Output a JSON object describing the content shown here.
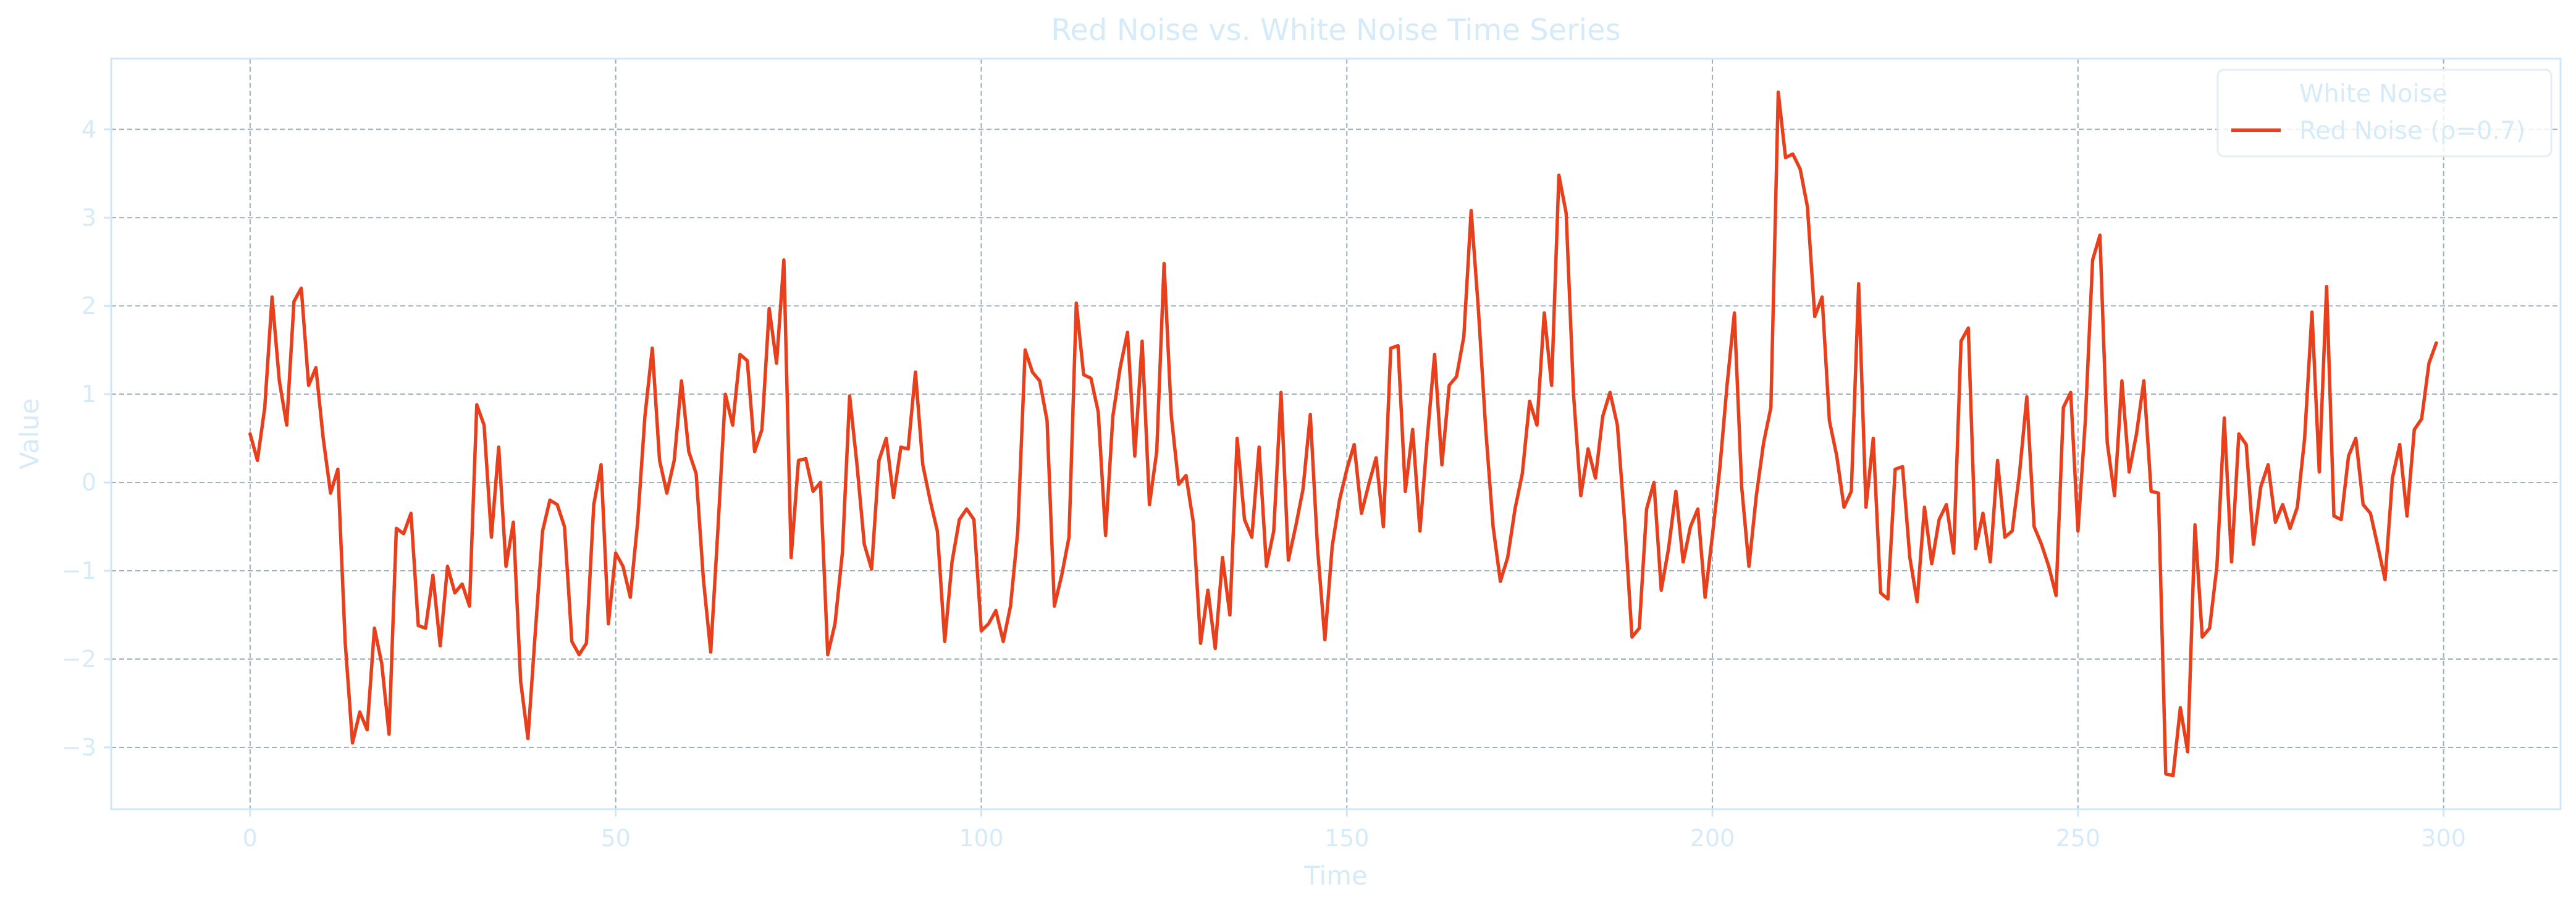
{
  "colors": {
    "text": "#d6ebfa",
    "spine": "#cfe7f8",
    "grid": "#9fb0bd",
    "red_noise": "#e8401c",
    "legend_border": "#e3eef7"
  },
  "chart_data": {
    "type": "line",
    "title": "Red Noise vs. White Noise Time Series",
    "xlabel": "Time",
    "ylabel": "Value",
    "xlim": [
      -19,
      316
    ],
    "ylim": [
      -3.7,
      4.8
    ],
    "xticks": [
      0,
      50,
      100,
      150,
      200,
      250,
      300
    ],
    "yticks": [
      -3,
      -2,
      -1,
      0,
      1,
      2,
      3,
      4
    ],
    "xtick_labels": [
      "0",
      "50",
      "100",
      "150",
      "200",
      "250",
      "300"
    ],
    "ytick_labels": [
      "−3",
      "−2",
      "−1",
      "0",
      "1",
      "2",
      "3",
      "4"
    ],
    "grid": true,
    "legend": {
      "placement": "top-right",
      "entries": [
        {
          "label": "White Noise",
          "marker": false
        },
        {
          "label": "Red Noise (ρ=0.7)",
          "marker": true
        }
      ]
    },
    "series": [
      {
        "name": "Red Noise (ρ=0.7)",
        "color": "#e8401c",
        "x_start": 0,
        "x_step": 1,
        "values": [
          0.55,
          0.25,
          0.85,
          2.1,
          1.15,
          0.65,
          2.05,
          2.2,
          1.1,
          1.3,
          0.5,
          -0.12,
          0.15,
          -1.8,
          -2.95,
          -2.6,
          -2.8,
          -1.65,
          -2.05,
          -2.85,
          -0.52,
          -0.58,
          -0.35,
          -1.62,
          -1.65,
          -1.05,
          -1.85,
          -0.95,
          -1.25,
          -1.15,
          -1.4,
          0.88,
          0.65,
          -0.62,
          0.4,
          -0.95,
          -0.45,
          -2.25,
          -2.9,
          -1.7,
          -0.55,
          -0.2,
          -0.25,
          -0.5,
          -1.8,
          -1.95,
          -1.82,
          -0.25,
          0.2,
          -1.6,
          -0.8,
          -0.95,
          -1.3,
          -0.45,
          0.75,
          1.52,
          0.25,
          -0.12,
          0.25,
          1.15,
          0.35,
          0.1,
          -1.1,
          -1.92,
          -0.5,
          1.0,
          0.65,
          1.45,
          1.38,
          0.35,
          0.6,
          1.97,
          1.35,
          2.52,
          -0.85,
          0.25,
          0.27,
          -0.1,
          0.0,
          -1.95,
          -1.6,
          -0.8,
          0.98,
          0.2,
          -0.7,
          -0.98,
          0.25,
          0.5,
          -0.17,
          0.4,
          0.38,
          1.25,
          0.2,
          -0.2,
          -0.55,
          -1.8,
          -0.9,
          -0.42,
          -0.3,
          -0.42,
          -1.68,
          -1.6,
          -1.45,
          -1.8,
          -1.4,
          -0.55,
          1.5,
          1.25,
          1.15,
          0.7,
          -1.4,
          -1.05,
          -0.62,
          2.03,
          1.22,
          1.18,
          0.8,
          -0.6,
          0.75,
          1.3,
          1.7,
          0.3,
          1.6,
          -0.25,
          0.35,
          2.48,
          0.75,
          -0.02,
          0.08,
          -0.45,
          -1.82,
          -1.22,
          -1.88,
          -0.85,
          -1.5,
          0.5,
          -0.42,
          -0.62,
          0.4,
          -0.95,
          -0.55,
          1.02,
          -0.88,
          -0.5,
          -0.08,
          0.77,
          -0.75,
          -1.78,
          -0.72,
          -0.2,
          0.15,
          0.43,
          -0.35,
          -0.02,
          0.28,
          -0.5,
          1.52,
          1.55,
          -0.1,
          0.6,
          -0.55,
          0.5,
          1.45,
          0.2,
          1.1,
          1.2,
          1.65,
          3.08,
          1.95,
          0.6,
          -0.5,
          -1.12,
          -0.85,
          -0.3,
          0.1,
          0.92,
          0.65,
          1.92,
          1.1,
          3.48,
          3.05,
          1.0,
          -0.15,
          0.38,
          0.05,
          0.75,
          1.02,
          0.65,
          -0.45,
          -1.75,
          -1.65,
          -0.3,
          0.0,
          -1.22,
          -0.75,
          -0.1,
          -0.9,
          -0.5,
          -0.3,
          -1.3,
          -0.6,
          0.15,
          1.1,
          1.92,
          -0.05,
          -0.95,
          -0.15,
          0.45,
          0.85,
          4.42,
          3.68,
          3.72,
          3.55,
          3.12,
          1.88,
          2.1,
          0.7,
          0.3,
          -0.28,
          -0.1,
          2.25,
          -0.28,
          0.5,
          -1.25,
          -1.32,
          0.15,
          0.18,
          -0.85,
          -1.35,
          -0.28,
          -0.92,
          -0.42,
          -0.25,
          -0.8,
          1.6,
          1.75,
          -0.75,
          -0.35,
          -0.9,
          0.25,
          -0.62,
          -0.55,
          0.1,
          0.97,
          -0.5,
          -0.7,
          -0.95,
          -1.28,
          0.85,
          1.02,
          -0.55,
          0.7,
          2.52,
          2.8,
          0.45,
          -0.15,
          1.15,
          0.12,
          0.55,
          1.15,
          -0.1,
          -0.12,
          -3.3,
          -3.32,
          -2.55,
          -3.05,
          -0.48,
          -1.75,
          -1.65,
          -0.95,
          0.73,
          -0.9,
          0.55,
          0.43,
          -0.7,
          -0.05,
          0.2,
          -0.45,
          -0.25,
          -0.52,
          -0.28,
          0.5,
          1.93,
          0.12,
          2.22,
          -0.38,
          -0.42,
          0.3,
          0.5,
          -0.25,
          -0.35,
          -0.72,
          -1.1,
          0.05,
          0.43,
          -0.38,
          0.6,
          0.72,
          1.35,
          1.58
        ]
      }
    ]
  }
}
